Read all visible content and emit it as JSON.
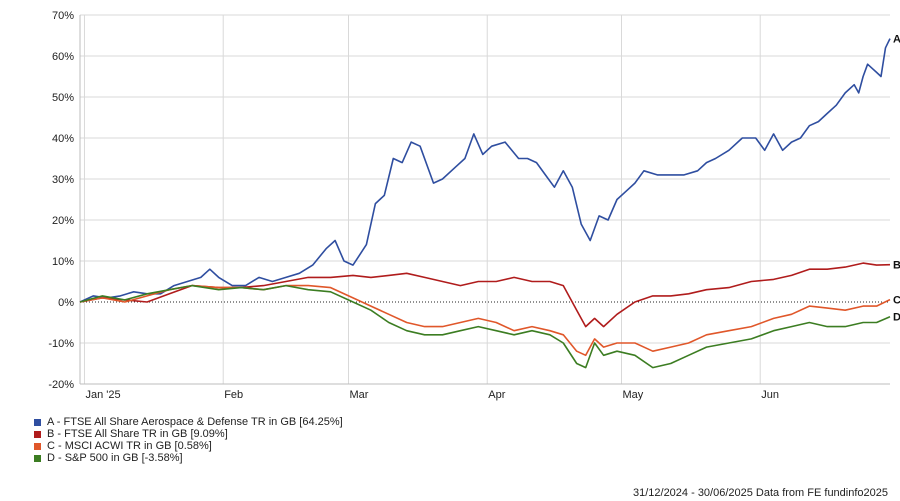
{
  "chart_data": {
    "type": "line",
    "ylim": [
      -20,
      70
    ],
    "y_ticks": [
      -20,
      -10,
      0,
      10,
      20,
      30,
      40,
      50,
      60,
      70
    ],
    "y_tick_labels": [
      "-20%",
      "-10%",
      "0%",
      "10%",
      "20%",
      "30%",
      "40%",
      "50%",
      "60%",
      "70%"
    ],
    "x_range": [
      "2024-12-31",
      "2025-06-30"
    ],
    "x_ticks": [
      {
        "label": "Jan '25",
        "date": "2025-01-01"
      },
      {
        "label": "Feb",
        "date": "2025-02-01"
      },
      {
        "label": "Mar",
        "date": "2025-03-01"
      },
      {
        "label": "Apr",
        "date": "2025-04-01"
      },
      {
        "label": "May",
        "date": "2025-05-01"
      },
      {
        "label": "Jun",
        "date": "2025-06-01"
      }
    ],
    "grid": true,
    "zero_line": "dotted",
    "series": [
      {
        "key": "A",
        "name": "A - FTSE All Share Aerospace & Defense TR in GB [64.25%]",
        "color": "#2f4ea0",
        "points": [
          [
            "2024-12-31",
            0
          ],
          [
            "2025-01-03",
            1.5
          ],
          [
            "2025-01-06",
            1
          ],
          [
            "2025-01-09",
            1.5
          ],
          [
            "2025-01-12",
            2.5
          ],
          [
            "2025-01-15",
            2
          ],
          [
            "2025-01-18",
            2
          ],
          [
            "2025-01-21",
            4
          ],
          [
            "2025-01-24",
            5
          ],
          [
            "2025-01-27",
            6
          ],
          [
            "2025-01-29",
            8
          ],
          [
            "2025-01-31",
            6
          ],
          [
            "2025-02-03",
            4
          ],
          [
            "2025-02-06",
            4
          ],
          [
            "2025-02-09",
            6
          ],
          [
            "2025-02-12",
            5
          ],
          [
            "2025-02-15",
            6
          ],
          [
            "2025-02-18",
            7
          ],
          [
            "2025-02-21",
            9
          ],
          [
            "2025-02-24",
            13
          ],
          [
            "2025-02-26",
            15
          ],
          [
            "2025-02-28",
            10
          ],
          [
            "2025-03-02",
            9
          ],
          [
            "2025-03-05",
            14
          ],
          [
            "2025-03-07",
            24
          ],
          [
            "2025-03-09",
            26
          ],
          [
            "2025-03-11",
            35
          ],
          [
            "2025-03-13",
            34
          ],
          [
            "2025-03-15",
            39
          ],
          [
            "2025-03-17",
            38
          ],
          [
            "2025-03-20",
            29
          ],
          [
            "2025-03-22",
            30
          ],
          [
            "2025-03-25",
            33
          ],
          [
            "2025-03-27",
            35
          ],
          [
            "2025-03-29",
            41
          ],
          [
            "2025-03-31",
            36
          ],
          [
            "2025-04-02",
            38
          ],
          [
            "2025-04-05",
            39
          ],
          [
            "2025-04-08",
            35
          ],
          [
            "2025-04-10",
            35
          ],
          [
            "2025-04-12",
            34
          ],
          [
            "2025-04-14",
            31
          ],
          [
            "2025-04-16",
            28
          ],
          [
            "2025-04-18",
            32
          ],
          [
            "2025-04-20",
            28
          ],
          [
            "2025-04-22",
            19
          ],
          [
            "2025-04-24",
            15
          ],
          [
            "2025-04-26",
            21
          ],
          [
            "2025-04-28",
            20
          ],
          [
            "2025-04-30",
            25
          ],
          [
            "2025-05-02",
            27
          ],
          [
            "2025-05-04",
            29
          ],
          [
            "2025-05-06",
            32
          ],
          [
            "2025-05-09",
            31
          ],
          [
            "2025-05-12",
            31
          ],
          [
            "2025-05-15",
            31
          ],
          [
            "2025-05-18",
            32
          ],
          [
            "2025-05-20",
            34
          ],
          [
            "2025-05-22",
            35
          ],
          [
            "2025-05-25",
            37
          ],
          [
            "2025-05-28",
            40
          ],
          [
            "2025-05-31",
            40
          ],
          [
            "2025-06-02",
            37
          ],
          [
            "2025-06-04",
            41
          ],
          [
            "2025-06-06",
            37
          ],
          [
            "2025-06-08",
            39
          ],
          [
            "2025-06-10",
            40
          ],
          [
            "2025-06-12",
            43
          ],
          [
            "2025-06-14",
            44
          ],
          [
            "2025-06-16",
            46
          ],
          [
            "2025-06-18",
            48
          ],
          [
            "2025-06-20",
            51
          ],
          [
            "2025-06-22",
            53
          ],
          [
            "2025-06-23",
            51
          ],
          [
            "2025-06-24",
            55
          ],
          [
            "2025-06-25",
            58
          ],
          [
            "2025-06-26",
            57
          ],
          [
            "2025-06-27",
            56
          ],
          [
            "2025-06-28",
            55
          ],
          [
            "2025-06-29",
            62
          ],
          [
            "2025-06-30",
            64.25
          ]
        ]
      },
      {
        "key": "B",
        "name": "B - FTSE All Share TR in GB [9.09%]",
        "color": "#b01c1c",
        "points": [
          [
            "2024-12-31",
            0
          ],
          [
            "2025-01-05",
            1
          ],
          [
            "2025-01-10",
            0.5
          ],
          [
            "2025-01-15",
            0
          ],
          [
            "2025-01-20",
            2
          ],
          [
            "2025-01-25",
            4
          ],
          [
            "2025-01-31",
            3.5
          ],
          [
            "2025-02-05",
            3.5
          ],
          [
            "2025-02-10",
            4
          ],
          [
            "2025-02-15",
            5
          ],
          [
            "2025-02-20",
            6
          ],
          [
            "2025-02-25",
            6
          ],
          [
            "2025-03-02",
            6.5
          ],
          [
            "2025-03-06",
            6
          ],
          [
            "2025-03-10",
            6.5
          ],
          [
            "2025-03-14",
            7
          ],
          [
            "2025-03-18",
            6
          ],
          [
            "2025-03-22",
            5
          ],
          [
            "2025-03-26",
            4
          ],
          [
            "2025-03-30",
            5
          ],
          [
            "2025-04-03",
            5
          ],
          [
            "2025-04-07",
            6
          ],
          [
            "2025-04-11",
            5
          ],
          [
            "2025-04-15",
            5
          ],
          [
            "2025-04-18",
            4
          ],
          [
            "2025-04-21",
            -2
          ],
          [
            "2025-04-23",
            -6
          ],
          [
            "2025-04-25",
            -4
          ],
          [
            "2025-04-27",
            -6
          ],
          [
            "2025-04-30",
            -3
          ],
          [
            "2025-05-04",
            0
          ],
          [
            "2025-05-08",
            1.5
          ],
          [
            "2025-05-12",
            1.5
          ],
          [
            "2025-05-16",
            2
          ],
          [
            "2025-05-20",
            3
          ],
          [
            "2025-05-25",
            3.5
          ],
          [
            "2025-05-30",
            5
          ],
          [
            "2025-06-04",
            5.5
          ],
          [
            "2025-06-08",
            6.5
          ],
          [
            "2025-06-12",
            8
          ],
          [
            "2025-06-16",
            8
          ],
          [
            "2025-06-20",
            8.5
          ],
          [
            "2025-06-24",
            9.5
          ],
          [
            "2025-06-27",
            9
          ],
          [
            "2025-06-30",
            9.09
          ]
        ]
      },
      {
        "key": "C",
        "name": "C - MSCI ACWI TR in GB [0.58%]",
        "color": "#e0572a",
        "points": [
          [
            "2024-12-31",
            0
          ],
          [
            "2025-01-05",
            1
          ],
          [
            "2025-01-10",
            0
          ],
          [
            "2025-01-15",
            1.5
          ],
          [
            "2025-01-20",
            3
          ],
          [
            "2025-01-25",
            4
          ],
          [
            "2025-01-31",
            3.5
          ],
          [
            "2025-02-05",
            3.5
          ],
          [
            "2025-02-10",
            3
          ],
          [
            "2025-02-15",
            4
          ],
          [
            "2025-02-20",
            4
          ],
          [
            "2025-02-25",
            3.5
          ],
          [
            "2025-03-02",
            1
          ],
          [
            "2025-03-06",
            -1
          ],
          [
            "2025-03-10",
            -3
          ],
          [
            "2025-03-14",
            -5
          ],
          [
            "2025-03-18",
            -6
          ],
          [
            "2025-03-22",
            -6
          ],
          [
            "2025-03-26",
            -5
          ],
          [
            "2025-03-30",
            -4
          ],
          [
            "2025-04-03",
            -5
          ],
          [
            "2025-04-07",
            -7
          ],
          [
            "2025-04-11",
            -6
          ],
          [
            "2025-04-15",
            -7
          ],
          [
            "2025-04-18",
            -8
          ],
          [
            "2025-04-21",
            -12
          ],
          [
            "2025-04-23",
            -13
          ],
          [
            "2025-04-25",
            -9
          ],
          [
            "2025-04-27",
            -11
          ],
          [
            "2025-04-30",
            -10
          ],
          [
            "2025-05-04",
            -10
          ],
          [
            "2025-05-08",
            -12
          ],
          [
            "2025-05-12",
            -11
          ],
          [
            "2025-05-16",
            -10
          ],
          [
            "2025-05-20",
            -8
          ],
          [
            "2025-05-25",
            -7
          ],
          [
            "2025-05-30",
            -6
          ],
          [
            "2025-06-04",
            -4
          ],
          [
            "2025-06-08",
            -3
          ],
          [
            "2025-06-12",
            -1
          ],
          [
            "2025-06-16",
            -1.5
          ],
          [
            "2025-06-20",
            -2
          ],
          [
            "2025-06-24",
            -1
          ],
          [
            "2025-06-27",
            -1
          ],
          [
            "2025-06-30",
            0.58
          ]
        ]
      },
      {
        "key": "D",
        "name": "D - S&P 500 in GB [-3.58%]",
        "color": "#3c7d22",
        "points": [
          [
            "2024-12-31",
            0
          ],
          [
            "2025-01-05",
            1.5
          ],
          [
            "2025-01-10",
            0.5
          ],
          [
            "2025-01-15",
            2
          ],
          [
            "2025-01-20",
            3
          ],
          [
            "2025-01-25",
            4
          ],
          [
            "2025-01-31",
            3
          ],
          [
            "2025-02-05",
            3.5
          ],
          [
            "2025-02-10",
            3
          ],
          [
            "2025-02-15",
            4
          ],
          [
            "2025-02-20",
            3
          ],
          [
            "2025-02-25",
            2.5
          ],
          [
            "2025-03-02",
            0
          ],
          [
            "2025-03-06",
            -2
          ],
          [
            "2025-03-10",
            -5
          ],
          [
            "2025-03-14",
            -7
          ],
          [
            "2025-03-18",
            -8
          ],
          [
            "2025-03-22",
            -8
          ],
          [
            "2025-03-26",
            -7
          ],
          [
            "2025-03-30",
            -6
          ],
          [
            "2025-04-03",
            -7
          ],
          [
            "2025-04-07",
            -8
          ],
          [
            "2025-04-11",
            -7
          ],
          [
            "2025-04-15",
            -8
          ],
          [
            "2025-04-18",
            -10
          ],
          [
            "2025-04-21",
            -15
          ],
          [
            "2025-04-23",
            -16
          ],
          [
            "2025-04-25",
            -10
          ],
          [
            "2025-04-27",
            -13
          ],
          [
            "2025-04-30",
            -12
          ],
          [
            "2025-05-04",
            -13
          ],
          [
            "2025-05-08",
            -16
          ],
          [
            "2025-05-12",
            -15
          ],
          [
            "2025-05-16",
            -13
          ],
          [
            "2025-05-20",
            -11
          ],
          [
            "2025-05-25",
            -10
          ],
          [
            "2025-05-30",
            -9
          ],
          [
            "2025-06-04",
            -7
          ],
          [
            "2025-06-08",
            -6
          ],
          [
            "2025-06-12",
            -5
          ],
          [
            "2025-06-16",
            -6
          ],
          [
            "2025-06-20",
            -6
          ],
          [
            "2025-06-24",
            -5
          ],
          [
            "2025-06-27",
            -5
          ],
          [
            "2025-06-30",
            -3.58
          ]
        ]
      }
    ]
  },
  "footer": "31/12/2024 - 30/06/2025 Data from FE fundinfo2025"
}
